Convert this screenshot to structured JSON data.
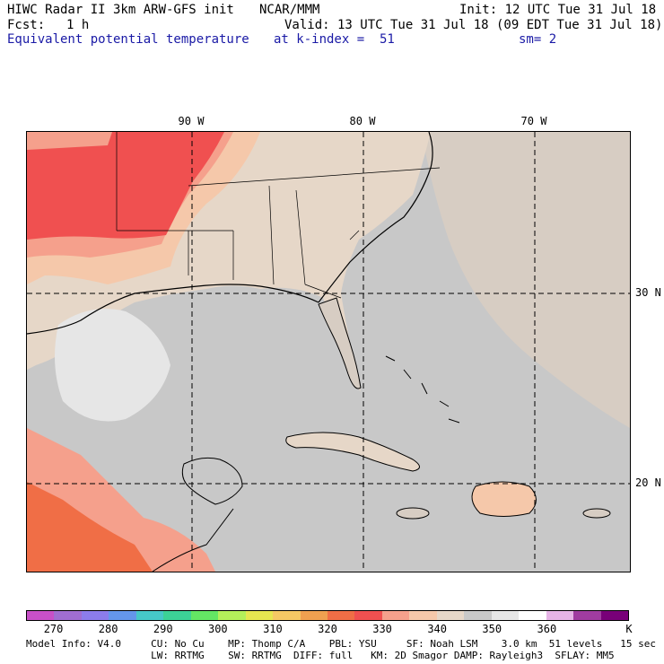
{
  "header": {
    "line1_left": "HIWC Radar II 3km ARW-GFS init",
    "line1_center": "NCAR/MMM",
    "line1_right": "Init: 12 UTC Tue 31 Jul 18",
    "fcst_label": "Fcst:",
    "fcst_value": "1 h",
    "valid": "Valid: 13 UTC Tue 31 Jul 18 (09 EDT Tue 31 Jul 18)",
    "field_name": "Equivalent potential temperature",
    "level": "at k-index =  51",
    "smoothing": "sm= 2"
  },
  "map": {
    "longitude_labels": [
      "90 W",
      "80 W",
      "70 W"
    ],
    "latitude_labels": [
      "30 N",
      "20 N"
    ],
    "colors": {
      "land_beige": "#e6d7c8",
      "ocean_gray": "#c8c8c8",
      "light_gray": "#e6e6e6",
      "warm_peach": "#f5c8aa",
      "salmon": "#f5a08c",
      "red": "#f05050",
      "gridline": "#000000"
    }
  },
  "colorbar": {
    "colors": [
      "#c850c8",
      "#a06ed2",
      "#8c7ceb",
      "#6496eb",
      "#46c8c8",
      "#3cd296",
      "#64e664",
      "#b4f05a",
      "#e6e650",
      "#f5c864",
      "#f0a050",
      "#f06e46",
      "#f05050",
      "#f5a08c",
      "#f5c8aa",
      "#e6d7c8",
      "#c8c8c8",
      "#e6e6e6",
      "#ffffff",
      "#e6b4e6",
      "#a03ca0",
      "#780078"
    ],
    "labels": [
      "270",
      "280",
      "290",
      "300",
      "310",
      "320",
      "330",
      "340",
      "350",
      "360"
    ],
    "units": "K"
  },
  "footer": {
    "line1": "Model Info: V4.0     CU: No Cu    MP: Thomp C/A    PBL: YSU     SF: Noah LSM    3.0 km  51 levels   15 sec",
    "line2": "                     LW: RRTMG    SW: RRTMG  DIFF: full   KM: 2D Smagor DAMP: Rayleigh3  SFLAY: MM5"
  }
}
